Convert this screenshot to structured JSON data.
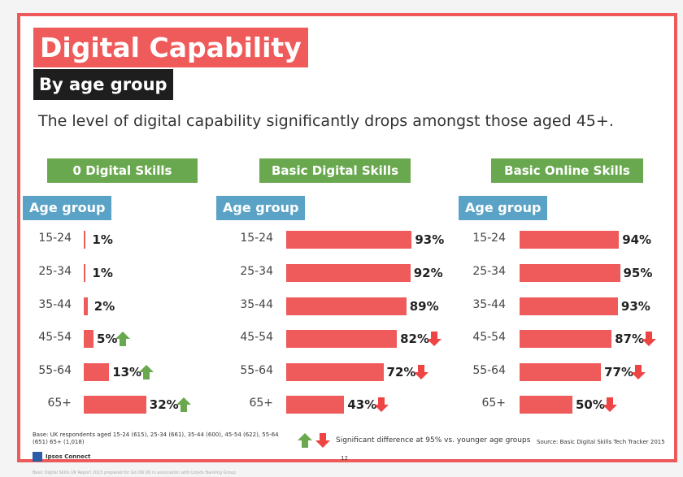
{
  "title": "Digital Capability",
  "subtitle": "By age group",
  "lead": "The level of digital capability significantly drops amongst those aged 45+.",
  "colors": {
    "accent": "#ef5a5a",
    "header_bg": "#1e1e1e",
    "panel_title": "#6aa84f",
    "age_header": "#5aa3c6",
    "up": "#6aa84f",
    "down": "#ef4444"
  },
  "chart_data": [
    {
      "type": "bar",
      "title": "0 Digital Skills",
      "category_header": "Age group",
      "categories": [
        "15-24",
        "25-34",
        "35-44",
        "45-54",
        "55-64",
        "65+"
      ],
      "values": [
        1,
        1,
        2,
        5,
        13,
        32
      ],
      "labels": [
        "1%",
        "1%",
        "2%",
        "5%",
        "13%",
        "32%"
      ],
      "significance": [
        null,
        null,
        null,
        "up",
        "up",
        "up"
      ]
    },
    {
      "type": "bar",
      "title": "Basic Digital Skills",
      "category_header": "Age group",
      "categories": [
        "15-24",
        "25-34",
        "35-44",
        "45-54",
        "55-64",
        "65+"
      ],
      "values": [
        93,
        92,
        89,
        82,
        72,
        43
      ],
      "labels": [
        "93%",
        "92%",
        "89%",
        "82%",
        "72%",
        "43%"
      ],
      "significance": [
        null,
        null,
        null,
        "down",
        "down",
        "down"
      ]
    },
    {
      "type": "bar",
      "title": "Basic Online Skills",
      "category_header": "Age group",
      "categories": [
        "15-24",
        "25-34",
        "35-44",
        "45-54",
        "55-64",
        "65+"
      ],
      "values": [
        94,
        95,
        93,
        87,
        77,
        50
      ],
      "labels": [
        "94%",
        "95%",
        "93%",
        "87%",
        "77%",
        "50%"
      ],
      "significance": [
        null,
        null,
        null,
        "down",
        "down",
        "down"
      ]
    }
  ],
  "footer": {
    "base": "Base: UK respondents aged 15-24 (615), 25-34 (661), 35-44 (600), 45-54 (622), 55-64 (651) 65+ (1,018)",
    "legend": "Significant difference at 95% vs. younger age groups",
    "source": "Source: Basic Digital Skills Tech Tracker 2015",
    "logo": "Ipsos Connect",
    "page": "12",
    "credit": "Basic Digital Skills UK Report 2015 prepared for Go ON UK in association with Lloyds Banking Group"
  }
}
